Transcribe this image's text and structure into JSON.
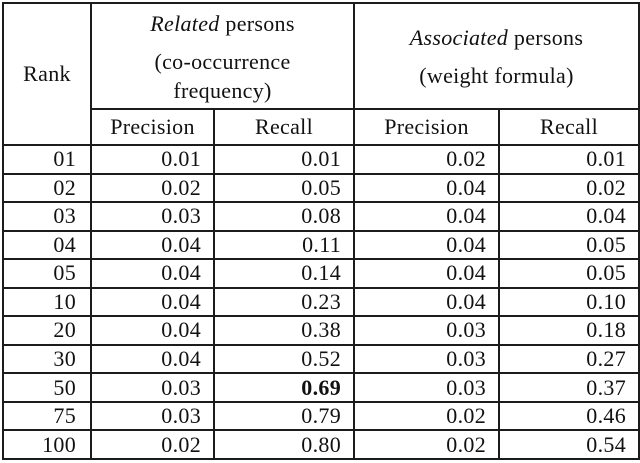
{
  "colors": {
    "background": "#ffffff",
    "text": "#111111",
    "border": "#1c1c1c"
  },
  "table": {
    "rank_header": "Rank",
    "groups": [
      {
        "title_italic": "Related",
        "title_rest": "persons",
        "subtitle_lines": [
          "(co-occurrence",
          "frequency)"
        ]
      },
      {
        "title_italic": "Associated",
        "title_rest": "persons",
        "subtitle_lines": [
          "(weight formula)"
        ]
      }
    ],
    "sub_headers": [
      "Precision",
      "Recall",
      "Precision",
      "Recall"
    ],
    "rows": [
      {
        "rank": "01",
        "values": [
          "0.01",
          "0.01",
          "0.02",
          "0.01"
        ],
        "bold": []
      },
      {
        "rank": "02",
        "values": [
          "0.02",
          "0.05",
          "0.04",
          "0.02"
        ],
        "bold": []
      },
      {
        "rank": "03",
        "values": [
          "0.03",
          "0.08",
          "0.04",
          "0.04"
        ],
        "bold": []
      },
      {
        "rank": "04",
        "values": [
          "0.04",
          "0.11",
          "0.04",
          "0.05"
        ],
        "bold": []
      },
      {
        "rank": "05",
        "values": [
          "0.04",
          "0.14",
          "0.04",
          "0.05"
        ],
        "bold": []
      },
      {
        "rank": "10",
        "values": [
          "0.04",
          "0.23",
          "0.04",
          "0.10"
        ],
        "bold": []
      },
      {
        "rank": "20",
        "values": [
          "0.04",
          "0.38",
          "0.03",
          "0.18"
        ],
        "bold": []
      },
      {
        "rank": "30",
        "values": [
          "0.04",
          "0.52",
          "0.03",
          "0.27"
        ],
        "bold": []
      },
      {
        "rank": "50",
        "values": [
          "0.03",
          "0.69",
          "0.03",
          "0.37"
        ],
        "bold": [
          1
        ]
      },
      {
        "rank": "75",
        "values": [
          "0.03",
          "0.79",
          "0.02",
          "0.46"
        ],
        "bold": []
      },
      {
        "rank": "100",
        "values": [
          "0.02",
          "0.80",
          "0.02",
          "0.54"
        ],
        "bold": []
      }
    ]
  }
}
